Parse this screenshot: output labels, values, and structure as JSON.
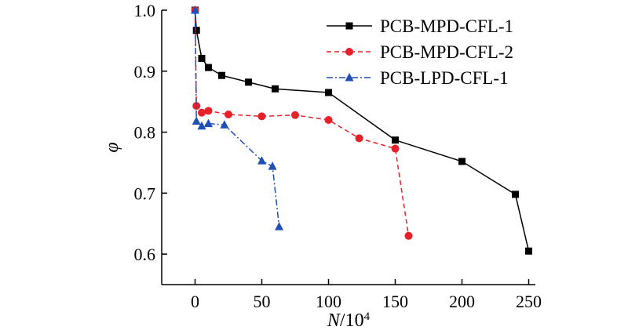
{
  "chart_data": {
    "type": "line",
    "xlabel": "N/10",
    "xlabel_sup": "4",
    "ylabel": "φ",
    "xlim": [
      -25,
      255
    ],
    "ylim": [
      0.55,
      1.0
    ],
    "xticks": [
      0,
      50,
      100,
      150,
      200,
      250
    ],
    "yticks": [
      0.6,
      0.7,
      0.8,
      0.9,
      1.0
    ],
    "xtick_labels": [
      "0",
      "50",
      "100",
      "150",
      "200",
      "250"
    ],
    "ytick_labels": [
      "0.6",
      "0.7",
      "0.8",
      "0.9",
      "1.0"
    ],
    "grid": false,
    "legend_position": "top-right",
    "series": [
      {
        "name": "PCB-MPD-CFL-1",
        "color": "#000000",
        "marker": "square",
        "line_style": "solid",
        "x": [
          0,
          1,
          5,
          10,
          20,
          40,
          60,
          100,
          150,
          200,
          240,
          250
        ],
        "y": [
          1.0,
          0.967,
          0.921,
          0.906,
          0.893,
          0.882,
          0.871,
          0.865,
          0.787,
          0.752,
          0.698,
          0.605
        ]
      },
      {
        "name": "PCB-MPD-CFL-2",
        "color": "#e8202a",
        "marker": "circle",
        "line_style": "dashed",
        "x": [
          0,
          1,
          5,
          10,
          25,
          50,
          75,
          100,
          123,
          150,
          160
        ],
        "y": [
          1.0,
          0.843,
          0.832,
          0.835,
          0.829,
          0.826,
          0.828,
          0.82,
          0.79,
          0.773,
          0.63
        ]
      },
      {
        "name": "PCB-LPD-CFL-1",
        "color": "#1f4fb5",
        "marker": "triangle",
        "line_style": "dashdot",
        "x": [
          0,
          1,
          5,
          10,
          22,
          50,
          58,
          63
        ],
        "y": [
          1.0,
          0.818,
          0.81,
          0.814,
          0.812,
          0.753,
          0.744,
          0.645
        ]
      }
    ]
  }
}
